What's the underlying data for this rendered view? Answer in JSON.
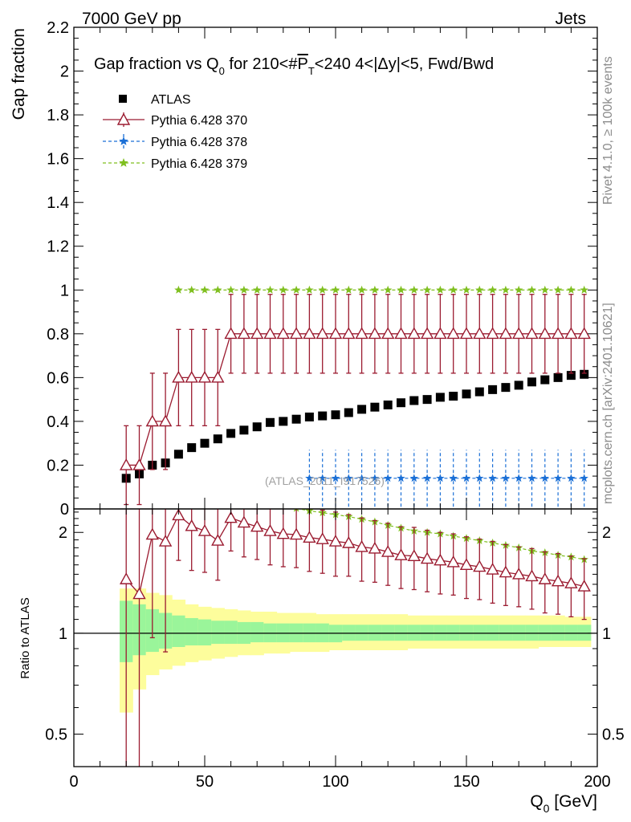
{
  "header": {
    "left": "7000 GeV pp",
    "right": "Jets"
  },
  "side_labels": {
    "rivet": "Rivet 4.1.0, ≥ 100k events",
    "mcplots": "mcplots.cern.ch [arXiv:2401.10621]"
  },
  "watermark": "(ATLAS_2011_I917526)",
  "chart_data": [
    {
      "type": "scatter",
      "title": "Gap fraction vs Q0 for 210<#PT<240  4<|Δy|<5, Fwd/Bwd",
      "title_parts": {
        "a": "Gap fraction vs Q",
        "sub0": "0",
        "b": " for 210<#",
        "p": "P",
        "subT": "T",
        "c": "<240  4<|Δy|<5, Fwd/Bwd"
      },
      "ylabel": "Gap fraction",
      "xlim": [
        0,
        200
      ],
      "ylim": [
        0,
        2.2
      ],
      "yticks": [
        0,
        0.2,
        0.4,
        0.6,
        0.8,
        1,
        1.2,
        1.4,
        1.6,
        1.8,
        2,
        2.2
      ],
      "ytick_labels": [
        "0",
        "0.2",
        "0.4",
        "0.6",
        "0.8",
        "1",
        "1.2",
        "1.4",
        "1.6",
        "1.8",
        "2",
        "2.2"
      ],
      "x": [
        20,
        25,
        30,
        35,
        40,
        45,
        50,
        55,
        60,
        65,
        70,
        75,
        80,
        85,
        90,
        95,
        100,
        105,
        110,
        115,
        120,
        125,
        130,
        135,
        140,
        145,
        150,
        155,
        160,
        165,
        170,
        175,
        180,
        185,
        190,
        195
      ],
      "series": [
        {
          "name": "ATLAS",
          "marker": "square",
          "color": "#000000",
          "values": [
            0.14,
            0.16,
            0.2,
            0.21,
            0.25,
            0.28,
            0.3,
            0.32,
            0.345,
            0.36,
            0.375,
            0.395,
            0.4,
            0.41,
            0.42,
            0.425,
            0.43,
            0.44,
            0.455,
            0.465,
            0.475,
            0.485,
            0.495,
            0.5,
            0.51,
            0.515,
            0.525,
            0.535,
            0.545,
            0.555,
            0.565,
            0.58,
            0.59,
            0.6,
            0.61,
            0.615
          ]
        },
        {
          "name": "Pythia 6.428 370",
          "marker": "triangle",
          "color": "#9b1b30",
          "values": [
            0.2,
            0.2,
            0.4,
            0.4,
            0.6,
            0.6,
            0.6,
            0.6,
            0.8,
            0.8,
            0.8,
            0.8,
            0.8,
            0.8,
            0.8,
            0.8,
            0.8,
            0.8,
            0.8,
            0.8,
            0.8,
            0.8,
            0.8,
            0.8,
            0.8,
            0.8,
            0.8,
            0.8,
            0.8,
            0.8,
            0.8,
            0.8,
            0.8,
            0.8,
            0.8,
            0.8
          ],
          "err": [
            0.18,
            0.18,
            0.22,
            0.22,
            0.22,
            0.22,
            0.22,
            0.22,
            0.18,
            0.18,
            0.18,
            0.18,
            0.18,
            0.18,
            0.18,
            0.18,
            0.18,
            0.18,
            0.18,
            0.18,
            0.18,
            0.18,
            0.18,
            0.18,
            0.18,
            0.18,
            0.18,
            0.18,
            0.18,
            0.18,
            0.18,
            0.18,
            0.18,
            0.18,
            0.18,
            0.18
          ]
        },
        {
          "name": "Pythia 6.428 378",
          "marker": "star",
          "color": "#1a6fd6",
          "x_start": 90,
          "value": 0.14,
          "err": 0.13
        },
        {
          "name": "Pythia 6.428 379",
          "marker": "star",
          "color": "#7fbf1f",
          "x_start": 40,
          "value": 1.0
        }
      ]
    },
    {
      "type": "line",
      "ylabel": "Ratio to ATLAS",
      "xlabel": "Q0 [GeV]",
      "xlabel_parts": {
        "a": "Q",
        "sub": "0",
        "b": " [GeV]"
      },
      "xlim": [
        0,
        200
      ],
      "ylim": [
        0.4,
        2.35
      ],
      "xticks": [
        0,
        50,
        100,
        150,
        200
      ],
      "xtick_labels": [
        "0",
        "50",
        "100",
        "150",
        "200"
      ],
      "yticks": [
        0.5,
        1,
        2
      ],
      "ytick_labels": [
        "0.5",
        "1",
        "2"
      ],
      "bands": {
        "x_edges": [
          17.5,
          22.5,
          27.5,
          32.5,
          37.5,
          42.5,
          47.5,
          52.5,
          57.5,
          62.5,
          67.5,
          72.5,
          77.5,
          82.5,
          87.5,
          92.5,
          97.5,
          102.5,
          107.5,
          112.5,
          117.5,
          122.5,
          127.5,
          132.5,
          137.5,
          142.5,
          147.5,
          152.5,
          157.5,
          162.5,
          167.5,
          172.5,
          177.5,
          182.5,
          187.5,
          192.5,
          197.5
        ],
        "yellow_lo": [
          0.58,
          0.68,
          0.75,
          0.78,
          0.8,
          0.82,
          0.83,
          0.84,
          0.85,
          0.86,
          0.86,
          0.87,
          0.87,
          0.88,
          0.88,
          0.88,
          0.89,
          0.89,
          0.89,
          0.89,
          0.89,
          0.89,
          0.9,
          0.9,
          0.9,
          0.9,
          0.9,
          0.9,
          0.9,
          0.9,
          0.9,
          0.9,
          0.91,
          0.91,
          0.91,
          0.91
        ],
        "yellow_hi": [
          1.36,
          1.36,
          1.32,
          1.3,
          1.26,
          1.22,
          1.2,
          1.19,
          1.18,
          1.17,
          1.16,
          1.16,
          1.15,
          1.15,
          1.15,
          1.14,
          1.14,
          1.14,
          1.14,
          1.14,
          1.14,
          1.14,
          1.13,
          1.13,
          1.13,
          1.13,
          1.13,
          1.13,
          1.13,
          1.13,
          1.13,
          1.13,
          1.13,
          1.13,
          1.12,
          1.12
        ],
        "green_lo": [
          0.82,
          0.86,
          0.88,
          0.9,
          0.91,
          0.92,
          0.92,
          0.93,
          0.93,
          0.93,
          0.94,
          0.94,
          0.94,
          0.94,
          0.94,
          0.94,
          0.94,
          0.95,
          0.95,
          0.95,
          0.95,
          0.95,
          0.95,
          0.95,
          0.95,
          0.95,
          0.95,
          0.95,
          0.95,
          0.95,
          0.95,
          0.95,
          0.95,
          0.95,
          0.95,
          0.95
        ],
        "green_hi": [
          1.25,
          1.22,
          1.18,
          1.15,
          1.13,
          1.11,
          1.1,
          1.09,
          1.09,
          1.08,
          1.08,
          1.07,
          1.07,
          1.07,
          1.07,
          1.07,
          1.06,
          1.06,
          1.06,
          1.06,
          1.06,
          1.06,
          1.06,
          1.06,
          1.06,
          1.06,
          1.06,
          1.06,
          1.06,
          1.06,
          1.06,
          1.06,
          1.06,
          1.06,
          1.06,
          1.06
        ]
      },
      "series": [
        {
          "name": "Pythia 6.428 370 / ATLAS",
          "marker": "triangle",
          "color": "#9b1b30",
          "x": [
            20,
            25,
            30,
            35,
            40,
            45,
            50,
            55,
            60,
            65,
            70,
            75,
            80,
            85,
            90,
            95,
            100,
            105,
            110,
            115,
            120,
            125,
            130,
            135,
            140,
            145,
            150,
            155,
            160,
            165,
            170,
            175,
            180,
            185,
            190,
            195
          ],
          "values": [
            1.45,
            1.31,
            1.97,
            1.88,
            2.25,
            2.09,
            2.02,
            1.89,
            2.21,
            2.14,
            2.08,
            2.02,
            1.98,
            1.97,
            1.93,
            1.91,
            1.88,
            1.86,
            1.81,
            1.79,
            1.75,
            1.71,
            1.7,
            1.67,
            1.65,
            1.63,
            1.6,
            1.58,
            1.55,
            1.52,
            1.5,
            1.48,
            1.45,
            1.43,
            1.41,
            1.38
          ],
          "err_lo": [
            1.1,
            1.0,
            1.0,
            1.0,
            0.6,
            0.55,
            0.5,
            0.45,
            0.45,
            0.45,
            0.42,
            0.42,
            0.4,
            0.4,
            0.4,
            0.4,
            0.4,
            0.38,
            0.38,
            0.37,
            0.36,
            0.35,
            0.35,
            0.34,
            0.34,
            0.33,
            0.33,
            0.32,
            0.32,
            0.31,
            0.3,
            0.3,
            0.3,
            0.29,
            0.29,
            0.28
          ],
          "err_hi": [
            1.2,
            1.1,
            0.6,
            0.6,
            0.2,
            0.3,
            0.4,
            0.5,
            0.2,
            0.25,
            0.3,
            0.35,
            0.4,
            0.4,
            0.42,
            0.42,
            0.42,
            0.4,
            0.4,
            0.38,
            0.38,
            0.37,
            0.37,
            0.36,
            0.35,
            0.35,
            0.34,
            0.33,
            0.33,
            0.32,
            0.31,
            0.31,
            0.3,
            0.3,
            0.29,
            0.29
          ]
        },
        {
          "name": "Pythia 6.428 379 / ATLAS",
          "marker": "star",
          "color": "#7fbf1f",
          "x": [
            85,
            90,
            95,
            100,
            105,
            110,
            115,
            120,
            125,
            130,
            135,
            140,
            145,
            150,
            155,
            160,
            165,
            170,
            175,
            180,
            185,
            190,
            195
          ],
          "values": [
            2.36,
            2.32,
            2.29,
            2.26,
            2.23,
            2.19,
            2.15,
            2.1,
            2.06,
            2.02,
            2.0,
            1.98,
            1.95,
            1.92,
            1.89,
            1.86,
            1.83,
            1.8,
            1.76,
            1.74,
            1.71,
            1.69,
            1.66
          ]
        }
      ],
      "reference_line": 1
    }
  ],
  "legend": [
    {
      "label": "ATLAS"
    },
    {
      "label": "Pythia 6.428 370"
    },
    {
      "label": "Pythia 6.428 378"
    },
    {
      "label": "Pythia 6.428 379"
    }
  ]
}
